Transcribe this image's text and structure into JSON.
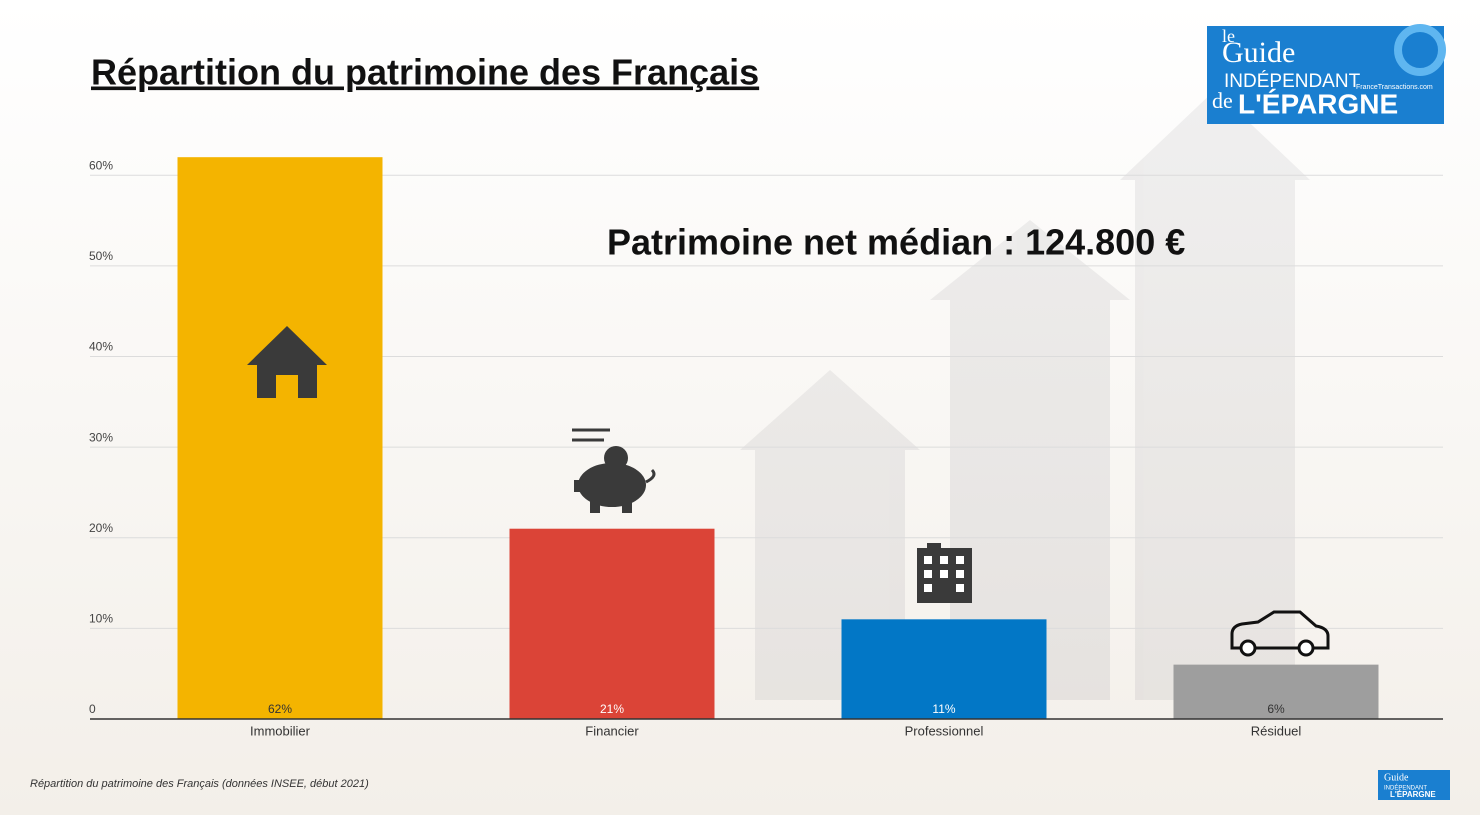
{
  "chart_data": {
    "type": "bar",
    "title": "Répartition du patrimoine des Français",
    "annotation": "Patrimoine net médian : 124.800 €",
    "footnote": "Répartition du patrimoine des Français (données INSEE, début 2021)",
    "categories": [
      "Immobilier",
      "Financier",
      "Professionnel",
      "Résiduel"
    ],
    "values": [
      62,
      21,
      11,
      6
    ],
    "value_labels": [
      "62%",
      "21%",
      "11%",
      "6%"
    ],
    "colors": [
      "#f4b400",
      "#db4437",
      "#0277c6",
      "#9e9e9e"
    ],
    "value_label_colors": [
      "#333333",
      "#ffffff",
      "#ffffff",
      "#333333"
    ],
    "ylim": [
      0,
      65
    ],
    "yticks": [
      0,
      {
        "value": 10,
        "label": "10%"
      },
      {
        "value": 20,
        "label": "20%"
      },
      {
        "value": 30,
        "label": "30%"
      },
      {
        "value": 40,
        "label": "40%"
      },
      {
        "value": 50,
        "label": "50%"
      },
      {
        "value": 60,
        "label": "60%"
      }
    ],
    "grid": true
  },
  "logo": {
    "top": "le",
    "guide": "Guide",
    "independant": "INDÉPENDANT",
    "de": "de",
    "epargne": "L'ÉPARGNE",
    "site": "FranceTransactions.com"
  }
}
